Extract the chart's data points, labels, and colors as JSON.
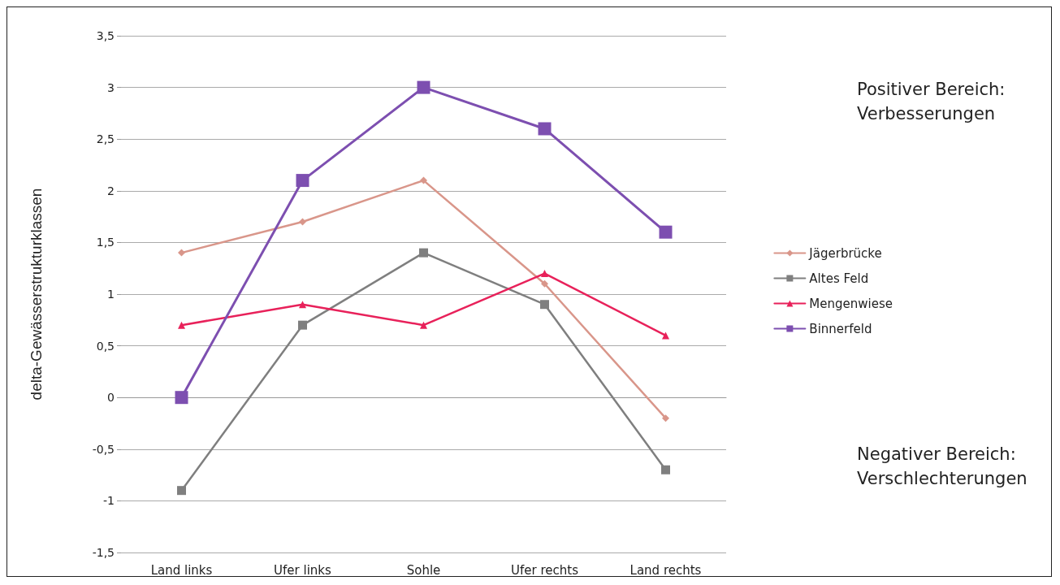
{
  "chart_data": {
    "type": "line",
    "ylabel": "delta-Gewässerstrukturklassen",
    "categories": [
      "Land links",
      "Ufer links",
      "Sohle",
      "Ufer rechts",
      "Land rechts"
    ],
    "series": [
      {
        "name": "Jägerbrücke",
        "color": "#d9968a",
        "marker": "diamond",
        "values": [
          1.4,
          1.7,
          2.1,
          1.1,
          -0.2
        ]
      },
      {
        "name": "Altes Feld",
        "color": "#7f7f7f",
        "marker": "square",
        "values": [
          -0.9,
          0.7,
          1.4,
          0.9,
          -0.7
        ]
      },
      {
        "name": "Mengenwiese",
        "color": "#e8215a",
        "marker": "triangle",
        "values": [
          0.7,
          0.9,
          0.7,
          1.2,
          0.6
        ]
      },
      {
        "name": "Binnerfeld",
        "color": "#7d4fb0",
        "marker": "square",
        "values": [
          0,
          2.1,
          3,
          2.6,
          1.6
        ]
      }
    ],
    "ylim": [
      -1.5,
      3.5
    ],
    "yticks": [
      {
        "value": -1.5,
        "label": "-1,5"
      },
      -1,
      {
        "value": -0.5,
        "label": "-0,5"
      },
      0,
      {
        "value": 0.5,
        "label": "0,5"
      },
      1,
      {
        "value": 1.5,
        "label": "1,5"
      },
      2,
      {
        "value": 2.5,
        "label": "2,5"
      },
      3,
      {
        "value": 3.5,
        "label": "3,5"
      }
    ],
    "grid": "y",
    "legend": "right",
    "line_style": "solid",
    "annotations": [
      "Positiver Bereich:\nVerbesserungen",
      "Negativer Bereich:\nVerschlechterungen"
    ]
  }
}
